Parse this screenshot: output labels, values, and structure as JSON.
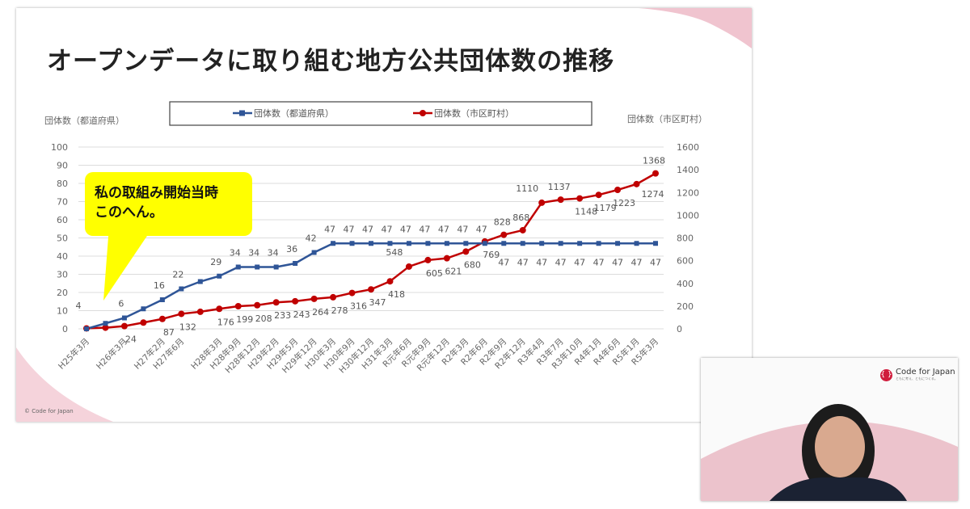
{
  "slide": {
    "title": "オープンデータに取り組む地方公共団体数の推移",
    "footer": "© Code for Japan",
    "callout_lines": [
      "私の取組み開始当時",
      "このへん。"
    ]
  },
  "video": {
    "logo_text": "Code for Japan",
    "logo_mark": "{ }",
    "tagline": "ともに考え、ともにつくる。"
  },
  "colors": {
    "prefecture": "#2f5597",
    "municipality": "#c00000",
    "callout": "#ffff00",
    "pink": "#f0c4cf"
  },
  "chart_data": {
    "type": "line",
    "title": "",
    "legend": [
      "団体数（都道府県）",
      "団体数（市区町村）"
    ],
    "legend_position": "top",
    "ylabel_left": "団体数（都道府県）",
    "ylabel_right": "団体数（市区町村）",
    "ylim_left": [
      0,
      100
    ],
    "yticks_left": [
      0,
      10,
      20,
      30,
      40,
      50,
      60,
      70,
      80,
      90,
      100
    ],
    "ylim_right": [
      0,
      1600
    ],
    "yticks_right": [
      0,
      200,
      400,
      600,
      800,
      1000,
      1200,
      1400,
      1600
    ],
    "grid": true,
    "categories": [
      "H25年3月",
      "",
      "H26年3月",
      "",
      "H27年2月",
      "H27年6月",
      "",
      "H28年3月",
      "H28年9月",
      "H28年12月",
      "H29年2月",
      "H29年5月",
      "H29年12月",
      "H30年3月",
      "H30年9月",
      "H30年12月",
      "H31年3月",
      "R元年6月",
      "R元年9月",
      "R元年12月",
      "R2年3月",
      "R2年6月",
      "R2年9月",
      "R2年12月",
      "R3年4月",
      "R3年7月",
      "R3年10月",
      "R4年1月",
      "R4年6月",
      "R5年1月",
      "R5年3月"
    ],
    "series": [
      {
        "name": "団体数（都道府県）",
        "axis": "left",
        "values": [
          0,
          3,
          6,
          11,
          16,
          22,
          26,
          29,
          34,
          34,
          34,
          36,
          42,
          47,
          47,
          47,
          47,
          47,
          47,
          47,
          47,
          47,
          47,
          47,
          47,
          47,
          47,
          47,
          47,
          47,
          47
        ],
        "labels": [
          null,
          null,
          "6",
          null,
          "16",
          "22",
          null,
          "29",
          "34",
          "34",
          "34",
          "36",
          "42",
          "47",
          "47",
          "47",
          "47",
          "47",
          "47",
          "47",
          "47",
          "47",
          "47",
          "47",
          "47",
          "47",
          "47",
          "47",
          "47",
          "47",
          "47"
        ]
      },
      {
        "name": "団体数（市区町村）",
        "axis": "right",
        "values": [
          4,
          10,
          24,
          55,
          87,
          132,
          150,
          176,
          199,
          208,
          233,
          243,
          264,
          278,
          316,
          347,
          418,
          548,
          605,
          621,
          680,
          769,
          828,
          868,
          1110,
          1137,
          1148,
          1179,
          1223,
          1274,
          1368
        ],
        "labels": [
          "4",
          null,
          "24",
          null,
          "87",
          "132",
          null,
          "176",
          "199",
          "208",
          "233",
          "243",
          "264",
          "278",
          "316",
          "347",
          "418",
          "548",
          "605",
          "621",
          "680",
          "769",
          "828",
          "868",
          "1110",
          "1137",
          "1148",
          "1179",
          "1223",
          "1274",
          "1368"
        ]
      }
    ]
  }
}
